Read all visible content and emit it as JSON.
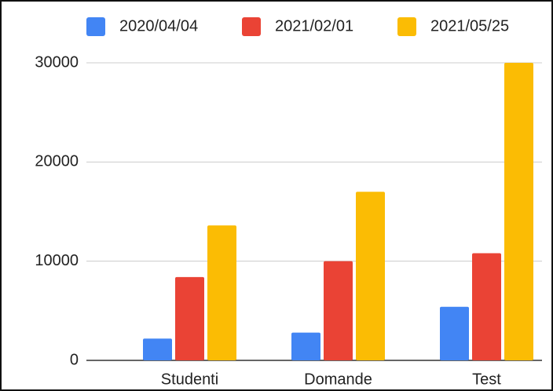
{
  "chart_data": {
    "type": "bar",
    "categories": [
      "Studenti",
      "Domande",
      "Test"
    ],
    "series": [
      {
        "name": "2020/04/04",
        "color": "#4285f4",
        "values": [
          2200,
          2800,
          5400
        ]
      },
      {
        "name": "2021/02/01",
        "color": "#ea4335",
        "values": [
          8400,
          10000,
          10800
        ]
      },
      {
        "name": "2021/05/25",
        "color": "#fbbc04",
        "values": [
          13600,
          17000,
          30000
        ]
      }
    ],
    "ylim": [
      0,
      30000
    ],
    "yticks": [
      0,
      10000,
      20000,
      30000
    ],
    "grid": true,
    "legend": "top"
  }
}
